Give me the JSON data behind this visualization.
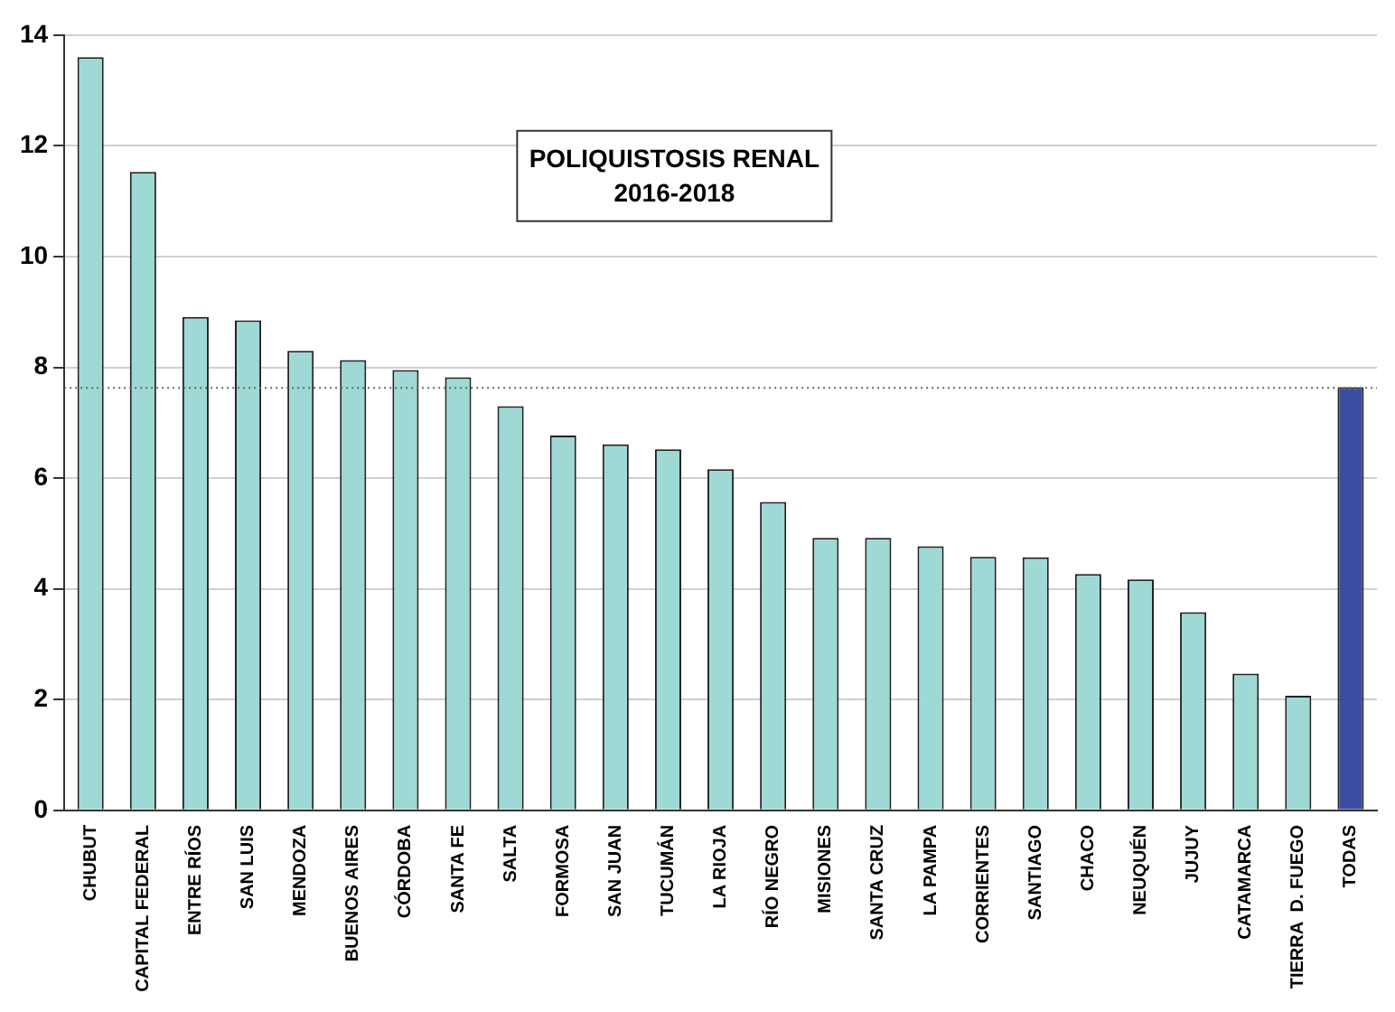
{
  "chart_data": {
    "type": "bar",
    "title": "POLIQUISTOSIS RENAL",
    "subtitle": "2016-2018",
    "categories": [
      "CHUBUT",
      "CAPITAL FEDERAL",
      "ENTRE RÍOS",
      "SAN LUIS",
      "MENDOZA",
      "BUENOS AIRES",
      "CÓRDOBA",
      "SANTA FE",
      "SALTA",
      "FORMOSA",
      "SAN JUAN",
      "TUCUMÁN",
      "LA RIOJA",
      "RÍO NEGRO",
      "MISIONES",
      "SANTA CRUZ",
      "LA PAMPA",
      "CORRIENTES",
      "SANTIAGO",
      "CHACO",
      "NEUQUÉN",
      "JUJUY",
      "CATAMARCA",
      "TIERRA  D. FUEGO",
      "TODAS"
    ],
    "values": [
      13.6,
      11.53,
      8.91,
      8.85,
      8.3,
      8.13,
      7.95,
      7.82,
      7.3,
      6.77,
      6.61,
      6.52,
      6.16,
      5.57,
      4.92,
      4.92,
      4.77,
      4.58,
      4.57,
      4.27,
      4.17,
      3.58,
      2.47,
      2.07,
      7.64
    ],
    "colors": [
      "#9ed9d5",
      "#9ed9d5",
      "#9ed9d5",
      "#9ed9d5",
      "#9ed9d5",
      "#9ed9d5",
      "#9ed9d5",
      "#9ed9d5",
      "#9ed9d5",
      "#9ed9d5",
      "#9ed9d5",
      "#9ed9d5",
      "#9ed9d5",
      "#9ed9d5",
      "#9ed9d5",
      "#9ed9d5",
      "#9ed9d5",
      "#9ed9d5",
      "#9ed9d5",
      "#9ed9d5",
      "#9ed9d5",
      "#9ed9d5",
      "#9ed9d5",
      "#9ed9d5",
      "#3a4da0"
    ],
    "ylim": [
      0,
      14
    ],
    "yticks": [
      0,
      2,
      4,
      6,
      8,
      10,
      12,
      14
    ],
    "grid": "y",
    "legend": false,
    "ref_lines": [
      {
        "axis": "y",
        "value": 7.63,
        "color": "#666666",
        "line_style": "dotted"
      }
    ]
  }
}
